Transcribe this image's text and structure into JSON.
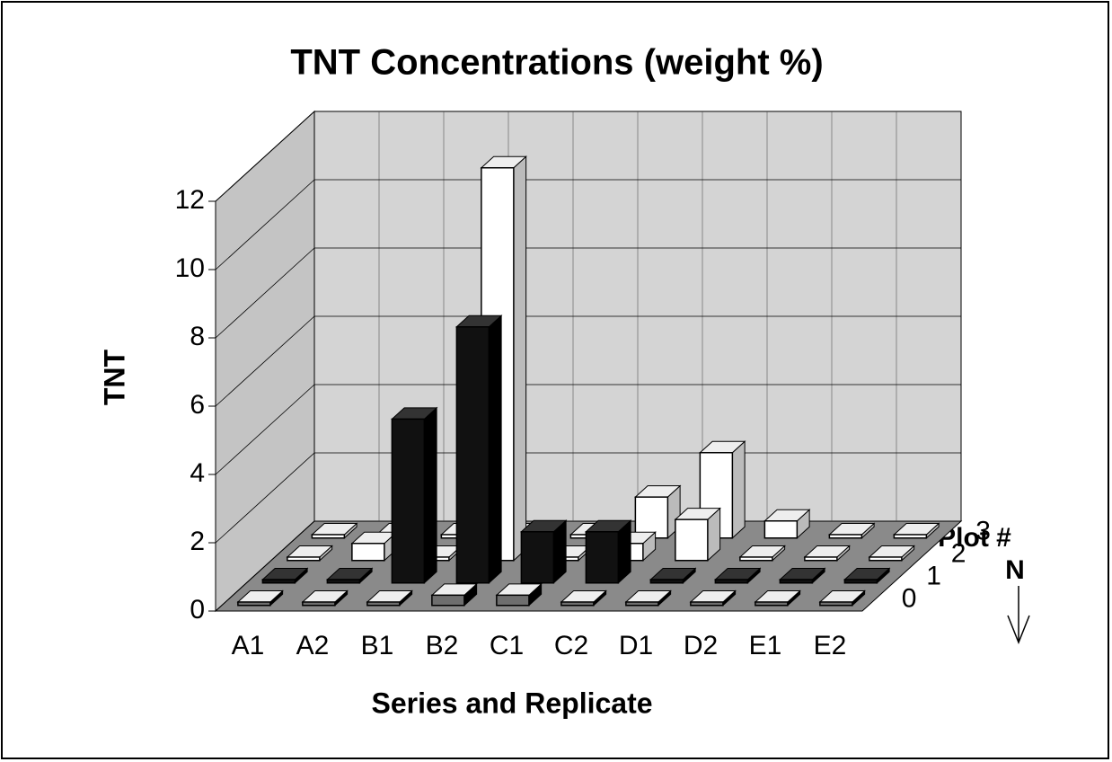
{
  "chart_data": {
    "type": "bar3d",
    "title": "TNT Concentrations (weight %)",
    "y_label": "TNT",
    "x_label": "Series and Replicate",
    "depth_label": "Plot #",
    "annotation": "N",
    "categories": [
      "A1",
      "A2",
      "B1",
      "B2",
      "C1",
      "C2",
      "D1",
      "D2",
      "E1",
      "E2"
    ],
    "series": [
      {
        "name": "0",
        "color": "#6e6e6e",
        "values": [
          0.1,
          0.1,
          0.1,
          0.3,
          0.3,
          0.1,
          0.1,
          0.1,
          0.1,
          0.1
        ]
      },
      {
        "name": "1",
        "color": "#111111",
        "values": [
          0.1,
          0.1,
          4.8,
          7.5,
          1.5,
          1.5,
          0.1,
          0.1,
          0.1,
          0.1
        ]
      },
      {
        "name": "2",
        "color": "#ffffff",
        "values": [
          0.1,
          0.5,
          0.1,
          11.5,
          0.1,
          0.5,
          1.2,
          0.1,
          0.1,
          0.1
        ]
      },
      {
        "name": "3",
        "color": "#ffffff",
        "values": [
          0.1,
          0.1,
          0.1,
          0.1,
          0.1,
          1.2,
          2.5,
          0.5,
          0.1,
          0.1
        ]
      }
    ],
    "ylim": [
      0,
      12
    ],
    "yticks": [
      0,
      2,
      4,
      6,
      8,
      10,
      12
    ],
    "grid": true
  }
}
